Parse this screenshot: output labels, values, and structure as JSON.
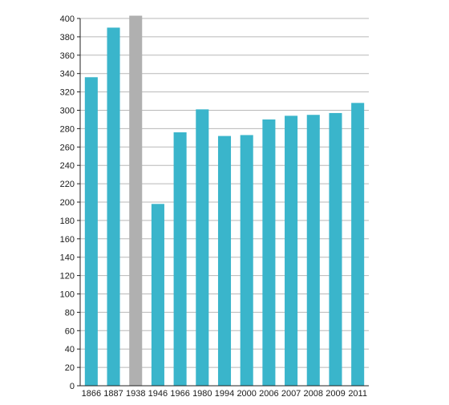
{
  "chart_data": {
    "type": "bar",
    "title": "",
    "xlabel": "",
    "ylabel": "",
    "categories": [
      "1866",
      "1887",
      "1938",
      "1946",
      "1966",
      "1980",
      "1994",
      "2000",
      "2006",
      "2007",
      "2008",
      "2009",
      "2011"
    ],
    "values": [
      336,
      390,
      403,
      198,
      276,
      301,
      272,
      273,
      290,
      294,
      295,
      297,
      308
    ],
    "highlighted": [
      false,
      false,
      true,
      false,
      false,
      false,
      false,
      false,
      false,
      false,
      false,
      false,
      false
    ],
    "ylim": [
      0,
      400
    ],
    "yticks": [
      0,
      20,
      40,
      60,
      80,
      100,
      120,
      140,
      160,
      180,
      200,
      220,
      240,
      260,
      280,
      300,
      320,
      340,
      360,
      380,
      400
    ],
    "grid": true,
    "colors": {
      "bar": "#3ab5cb",
      "highlight": "#b0b0b0",
      "grid": "#b8b8b8",
      "axis": "#222222"
    }
  }
}
